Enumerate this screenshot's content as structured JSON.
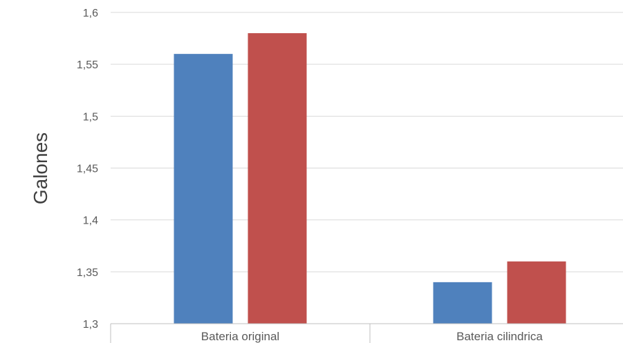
{
  "chart_data": {
    "type": "bar",
    "title": "",
    "xlabel": "",
    "ylabel": "Galones",
    "categories": [
      "Bateria original",
      "Bateria cilindrica"
    ],
    "series": [
      {
        "values": [
          1.56,
          1.34
        ],
        "color": "#4f81bd"
      },
      {
        "values": [
          1.58,
          1.36
        ],
        "color": "#c0504d"
      }
    ],
    "ylim": [
      1.3,
      1.6
    ],
    "yticks": [
      1.3,
      1.35,
      1.4,
      1.45,
      1.5,
      1.55,
      1.6
    ],
    "ytick_labels": [
      "1,3",
      "1,35",
      "1,4",
      "1,45",
      "1,5",
      "1,55",
      "1,6"
    ],
    "grid": true,
    "legend": "none"
  }
}
